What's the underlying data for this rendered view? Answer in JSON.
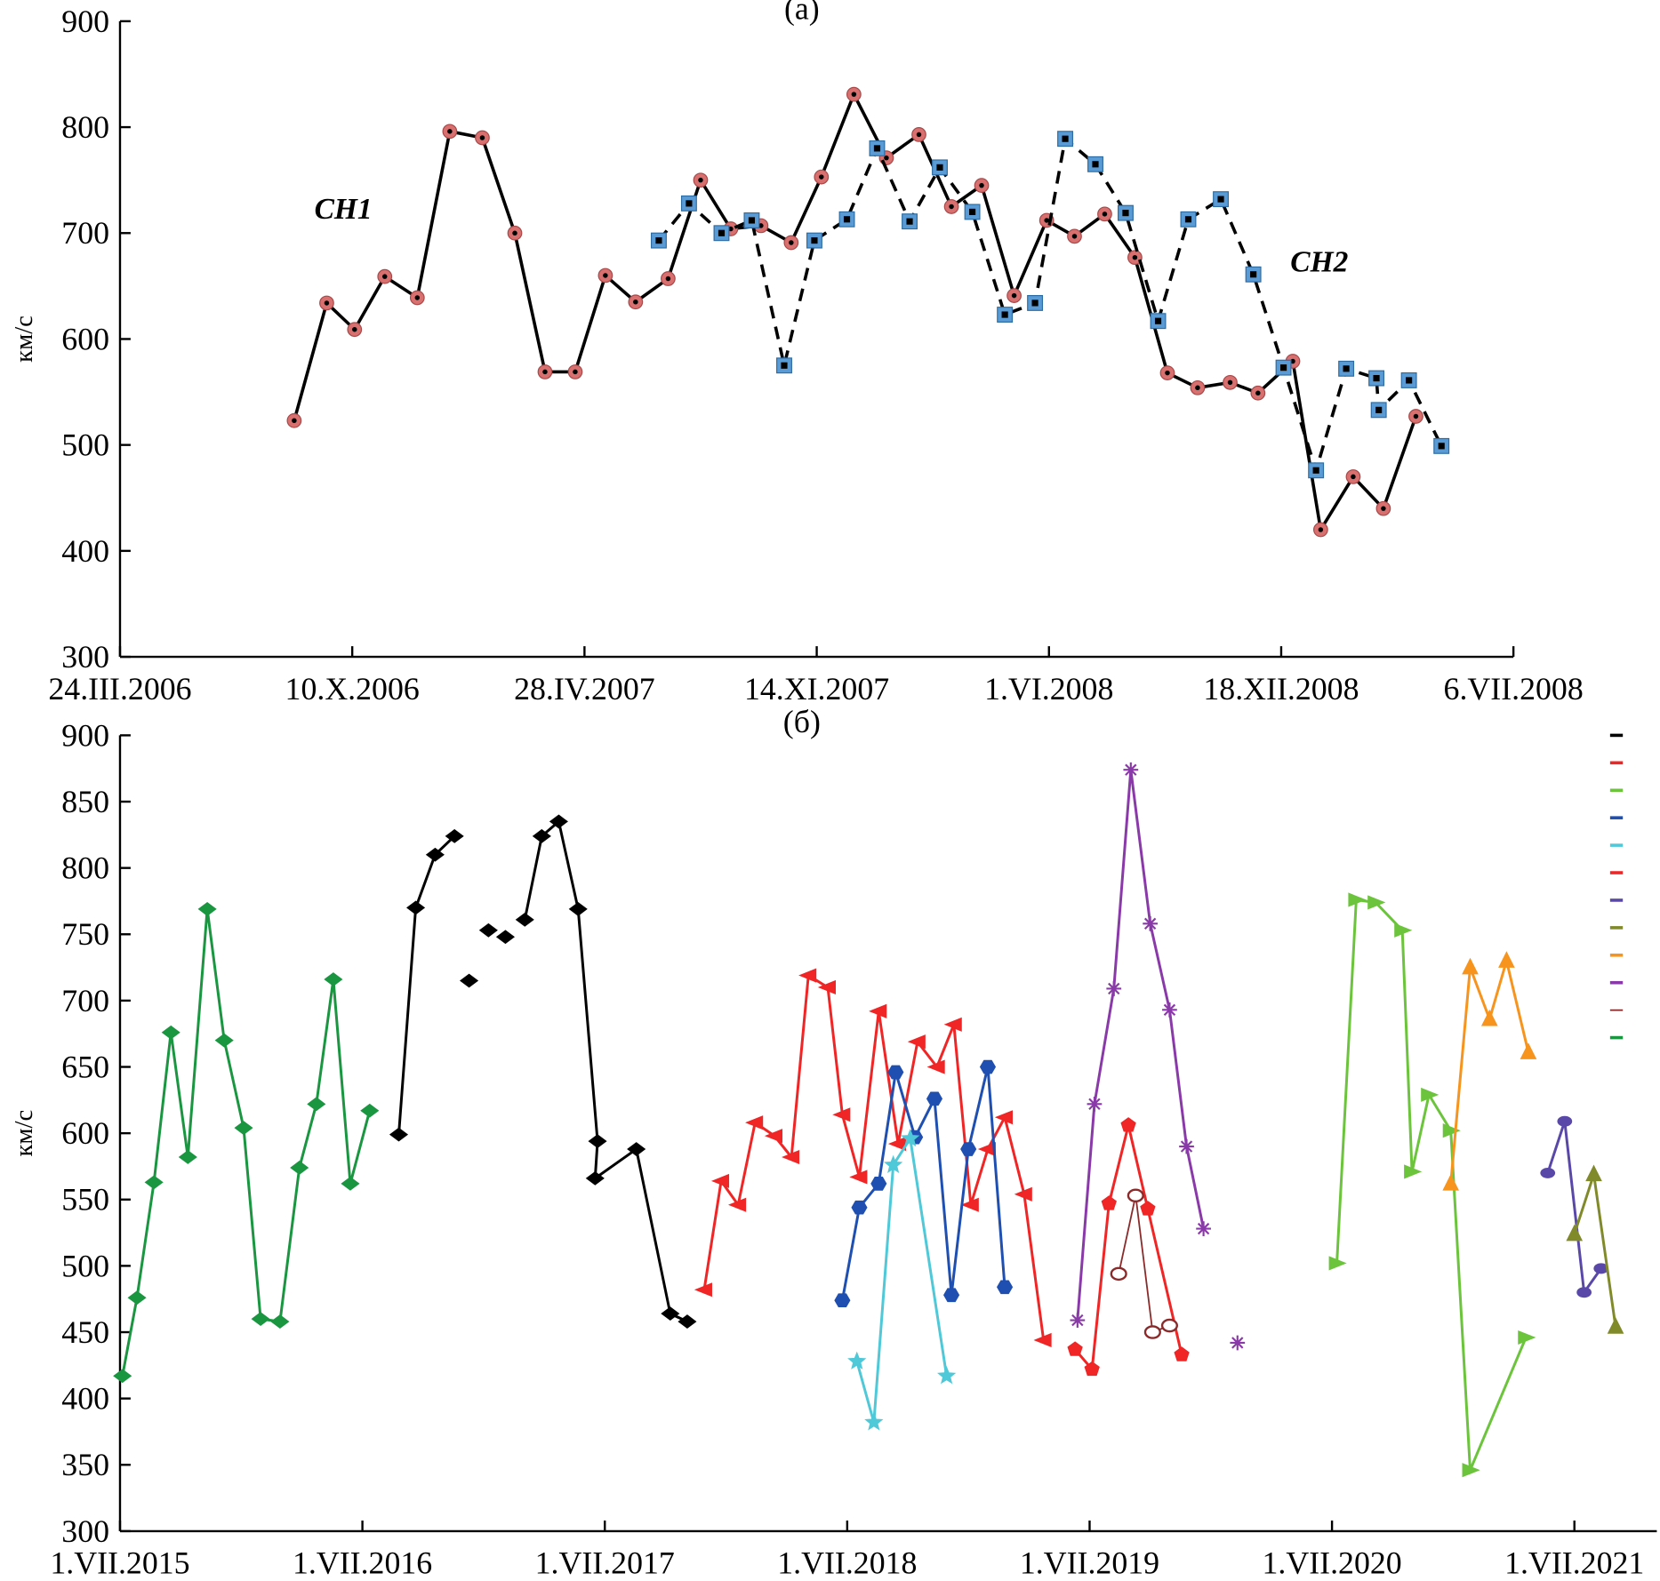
{
  "chart_data": [
    {
      "type": "line",
      "title": "(а)",
      "ylabel": "км/с",
      "xlim": [
        0,
        6
      ],
      "xticks": [
        {
          "value": 0,
          "label": "24.III.2006"
        },
        {
          "value": 1,
          "label": "10.X.2006"
        },
        {
          "value": 2,
          "label": "28.IV.2007"
        },
        {
          "value": 3,
          "label": "14.XI.2007"
        },
        {
          "value": 4,
          "label": "1.VI.2008"
        },
        {
          "value": 5,
          "label": "18.XII.2008"
        },
        {
          "value": 6,
          "label": "6.VII.2008"
        }
      ],
      "ylim": [
        300,
        900
      ],
      "yticks": [
        300,
        400,
        500,
        600,
        700,
        800,
        900
      ],
      "annotations": [
        "CH1",
        "CH2"
      ],
      "series": [
        {
          "color": "#000000",
          "marker": "circle",
          "marker_color": "#d87070",
          "linestyle": "solid",
          "x": [
            0.75,
            0.89,
            1.01,
            1.14,
            1.28,
            1.42,
            1.56,
            1.7,
            1.83,
            1.96,
            2.09,
            2.22,
            2.36,
            2.5,
            2.63,
            2.76,
            2.89,
            3.02,
            3.16,
            3.3,
            3.44,
            3.58,
            3.71,
            3.85,
            3.99,
            4.11,
            4.24,
            4.37,
            4.51,
            4.64,
            4.78,
            4.9,
            5.05,
            5.17,
            5.31,
            5.44,
            5.58
          ],
          "values": [
            523,
            634,
            609,
            659,
            639,
            796,
            790,
            700,
            569,
            569,
            660,
            635,
            657,
            750,
            704,
            707,
            691,
            753,
            831,
            771,
            793,
            725,
            745,
            641,
            712,
            697,
            718,
            677,
            568,
            554,
            559,
            549,
            579,
            420,
            470,
            440,
            527
          ]
        },
        {
          "color": "#000000",
          "marker": "square",
          "marker_color": "#5b9bd5",
          "linestyle": "dashed",
          "x": [
            2.32,
            2.45,
            2.59,
            2.72,
            2.86,
            2.99,
            3.13,
            3.26,
            3.4,
            3.53,
            3.67,
            3.81,
            3.94,
            4.07,
            4.2,
            4.33,
            4.47,
            4.6,
            4.74,
            4.88,
            5.01,
            5.15,
            5.28,
            5.41,
            5.42,
            5.55,
            5.69
          ],
          "values": [
            693,
            728,
            700,
            712,
            575,
            693,
            713,
            780,
            711,
            762,
            720,
            623,
            634,
            789,
            765,
            719,
            617,
            713,
            732,
            661,
            573,
            476,
            572,
            563,
            533,
            561,
            499
          ]
        }
      ]
    },
    {
      "type": "line",
      "title": "(б)",
      "ylabel": "км/с",
      "legend": "upper right",
      "xlim": [
        0,
        6.34
      ],
      "xticks": [
        {
          "value": 0,
          "label": "1.VII.2015"
        },
        {
          "value": 1,
          "label": "1.VII.2016"
        },
        {
          "value": 2,
          "label": "1.VII.2017"
        },
        {
          "value": 3,
          "label": "1.VII.2018"
        },
        {
          "value": 4,
          "label": "1.VII.2019"
        },
        {
          "value": 5,
          "label": "1.VII.2020"
        },
        {
          "value": 6,
          "label": "1.VII.2021"
        }
      ],
      "ylim": [
        300,
        900
      ],
      "yticks": [
        300,
        350,
        400,
        450,
        500,
        550,
        600,
        650,
        700,
        750,
        800,
        850,
        900
      ],
      "series": [
        {
          "color": "#000000",
          "marker": "diamond",
          "x": [
            1.15,
            1.22,
            1.3,
            1.38,
            null,
            1.44,
            null,
            1.52,
            null,
            1.59,
            null,
            1.67,
            1.74,
            1.81,
            1.89,
            1.97,
            1.96,
            2.13,
            2.27,
            2.34
          ],
          "values": [
            599,
            770,
            810,
            824,
            null,
            715,
            null,
            753,
            null,
            748,
            null,
            761,
            824,
            835,
            769,
            594,
            566,
            588,
            464,
            458
          ]
        },
        {
          "color": "#f02525",
          "marker": "triangle-left",
          "x": [
            2.41,
            2.48,
            2.55,
            2.62,
            2.7,
            2.77,
            2.84,
            2.92,
            2.98,
            3.05,
            3.13,
            3.21,
            3.29,
            3.37,
            3.44,
            3.51,
            3.58,
            3.65,
            3.73,
            3.81
          ],
          "values": [
            482,
            564,
            546,
            608,
            598,
            582,
            719,
            710,
            614,
            567,
            692,
            592,
            669,
            650,
            682,
            546,
            588,
            612,
            554,
            444
          ]
        },
        {
          "color": "#6cc43c",
          "marker": "triangle-right",
          "x": [
            5.02,
            5.1,
            5.18,
            5.29,
            5.33,
            5.4,
            5.49,
            5.57,
            5.8
          ],
          "values": [
            502,
            776,
            774,
            753,
            571,
            629,
            602,
            346,
            446
          ]
        },
        {
          "color": "#1f4fb0",
          "marker": "hexagon",
          "x": [
            2.98,
            3.05,
            3.13,
            3.2,
            3.28,
            3.36,
            3.43,
            3.5,
            3.58,
            3.65
          ],
          "values": [
            474,
            544,
            562,
            646,
            597,
            626,
            478,
            588,
            650,
            484
          ]
        },
        {
          "color": "#4fc8d8",
          "marker": "star",
          "x": [
            3.04,
            3.11,
            3.19,
            3.26,
            3.41
          ],
          "values": [
            428,
            382,
            576,
            596,
            417
          ]
        },
        {
          "color": "#f02525",
          "marker": "pentagon",
          "x": [
            3.94,
            4.01,
            4.08,
            4.16,
            4.24,
            4.38
          ],
          "values": [
            437,
            422,
            547,
            606,
            543,
            433
          ]
        },
        {
          "color": "#5a48a8",
          "marker": "ellipse",
          "x": [
            5.89,
            5.96,
            6.04,
            6.11
          ],
          "values": [
            570,
            609,
            480,
            498
          ]
        },
        {
          "color": "#808a2a",
          "marker": "triangle-up",
          "x": [
            6.0,
            6.08,
            6.17
          ],
          "values": [
            524,
            569,
            454
          ]
        },
        {
          "color": "#f7941d",
          "marker": "triangle-up",
          "x": [
            5.49,
            5.57,
            5.65,
            5.72,
            5.81
          ],
          "values": [
            562,
            725,
            686,
            730,
            661
          ]
        },
        {
          "color": "#8a3aa8",
          "marker": "asterisk",
          "x": [
            3.95,
            4.02,
            4.1,
            4.17,
            4.25,
            4.33,
            4.4,
            4.47,
            null,
            4.61
          ],
          "values": [
            459,
            622,
            709,
            874,
            758,
            693,
            590,
            528,
            null,
            442
          ]
        },
        {
          "color": "#8b2a2a",
          "marker": "open-circle",
          "thin": true,
          "x": [
            4.12,
            4.19,
            4.26,
            4.33
          ],
          "values": [
            494,
            553,
            450,
            455
          ]
        },
        {
          "color": "#1a9641",
          "marker": "diamond",
          "x": [
            0.01,
            0.07,
            0.14,
            0.21,
            0.28,
            0.36,
            0.43,
            0.51,
            0.58,
            0.66,
            0.74,
            0.81,
            0.88,
            0.95,
            1.03
          ],
          "values": [
            417,
            476,
            563,
            676,
            582,
            769,
            670,
            604,
            460,
            458,
            574,
            622,
            716,
            562,
            617
          ]
        }
      ]
    }
  ]
}
